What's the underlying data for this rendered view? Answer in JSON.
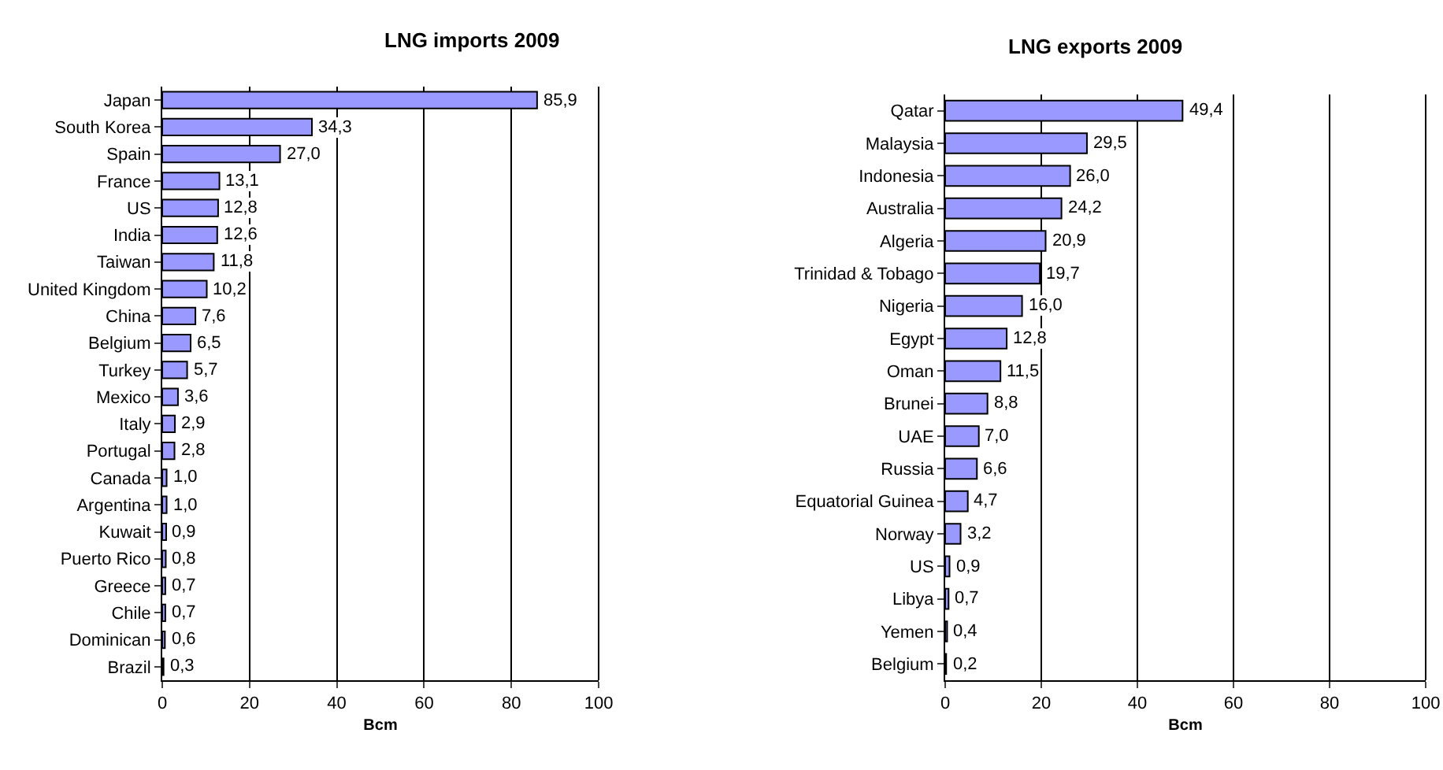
{
  "chart_data": [
    {
      "type": "bar",
      "orientation": "horizontal",
      "title": "LNG imports 2009",
      "xlabel": "Bcm",
      "categories": [
        "Japan",
        "South Korea",
        "Spain",
        "France",
        "US",
        "India",
        "Taiwan",
        "United Kingdom",
        "China",
        "Belgium",
        "Turkey",
        "Mexico",
        "Italy",
        "Portugal",
        "Canada",
        "Argentina",
        "Kuwait",
        "Puerto Rico",
        "Greece",
        "Chile",
        "Dominican",
        "Brazil"
      ],
      "values": [
        85.9,
        34.3,
        27.0,
        13.1,
        12.8,
        12.6,
        11.8,
        10.2,
        7.6,
        6.5,
        5.7,
        3.6,
        2.9,
        2.8,
        1.0,
        1.0,
        0.9,
        0.8,
        0.7,
        0.7,
        0.6,
        0.3
      ],
      "value_labels": [
        "85,9",
        "34,3",
        "27,0",
        "13,1",
        "12,8",
        "12,6",
        "11,8",
        "10,2",
        "7,6",
        "6,5",
        "5,7",
        "3,6",
        "2,9",
        "2,8",
        "1,0",
        "1,0",
        "0,9",
        "0,8",
        "0,7",
        "0,7",
        "0,6",
        "0,3"
      ],
      "color": "#9999ff",
      "xlim": [
        0,
        100
      ],
      "xticks": [
        0,
        20,
        40,
        60,
        80,
        100
      ],
      "grid": "x",
      "legend": false
    },
    {
      "type": "bar",
      "orientation": "horizontal",
      "title": "LNG exports 2009",
      "xlabel": "Bcm",
      "categories": [
        "Qatar",
        "Malaysia",
        "Indonesia",
        "Australia",
        "Algeria",
        "Trinidad & Tobago",
        "Nigeria",
        "Egypt",
        "Oman",
        "Brunei",
        "UAE",
        "Russia",
        "Equatorial Guinea",
        "Norway",
        "US",
        "Libya",
        "Yemen",
        "Belgium"
      ],
      "values": [
        49.4,
        29.5,
        26.0,
        24.2,
        20.9,
        19.7,
        16.0,
        12.8,
        11.5,
        8.8,
        7.0,
        6.6,
        4.7,
        3.2,
        0.9,
        0.7,
        0.4,
        0.2
      ],
      "value_labels": [
        "49,4",
        "29,5",
        "26,0",
        "24,2",
        "20,9",
        "19,7",
        "16,0",
        "12,8",
        "11,5",
        "8,8",
        "7,0",
        "6,6",
        "4,7",
        "3,2",
        "0,9",
        "0,7",
        "0,4",
        "0,2"
      ],
      "color": "#9999ff",
      "xlim": [
        0,
        100
      ],
      "xticks": [
        0,
        20,
        40,
        60,
        80,
        100
      ],
      "grid": "x",
      "legend": false
    }
  ]
}
